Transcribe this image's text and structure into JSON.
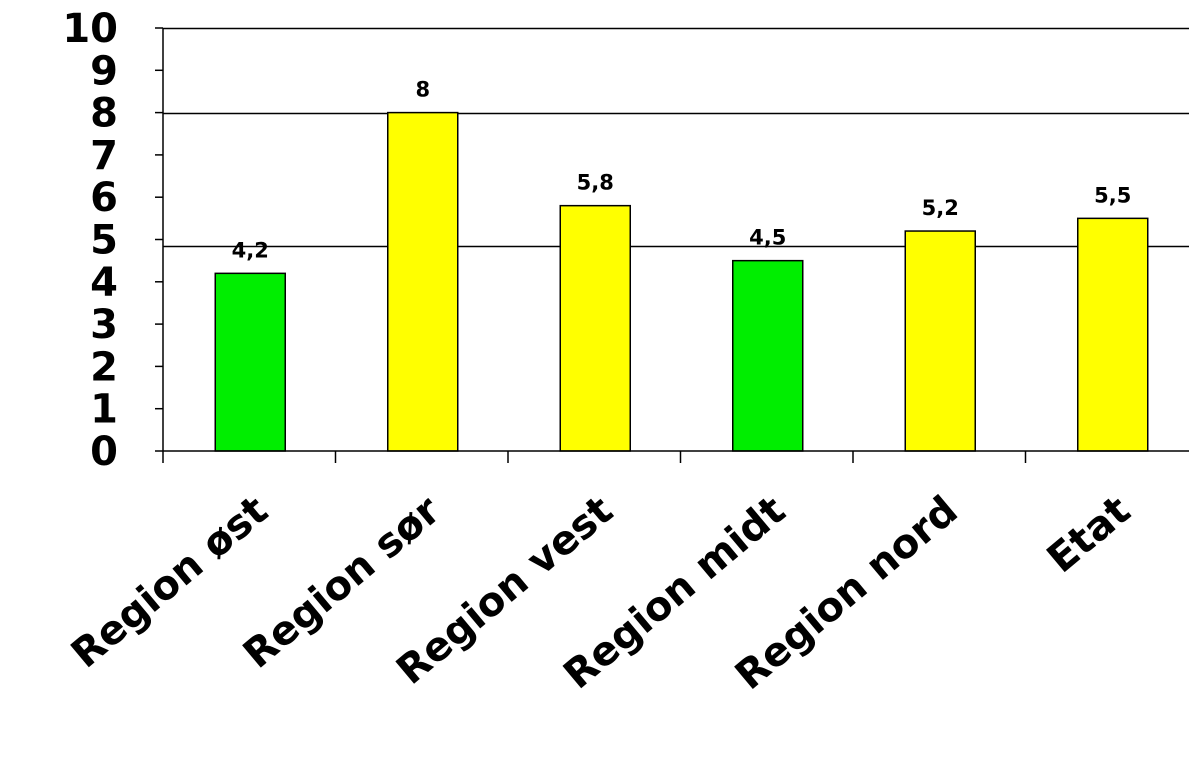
{
  "chart_data": {
    "type": "bar",
    "title": "",
    "xlabel": "",
    "ylabel": "",
    "categories": [
      "Region øst",
      "Region sør",
      "Region vest",
      "Region midt",
      "Region nord",
      "Etat"
    ],
    "values": [
      4.2,
      8,
      5.8,
      4.5,
      5.2,
      5.5
    ],
    "data_labels": [
      "4,2",
      "8",
      "5,8",
      "4,5",
      "5,2",
      "5,5"
    ],
    "bar_colors": [
      "#00ee00",
      "#ffff00",
      "#ffff00",
      "#00ee00",
      "#ffff00",
      "#ffff00"
    ],
    "ylim": [
      0,
      10
    ],
    "yticks": [
      0,
      1,
      2,
      3,
      4,
      5,
      6,
      7,
      8,
      9,
      10
    ],
    "ytick_labels": [
      "0",
      "1",
      "2",
      "3",
      "4",
      "5",
      "6",
      "7",
      "8",
      "9",
      "10"
    ],
    "reference_lines": [
      8,
      4.85
    ],
    "grid": false,
    "legend": "none"
  }
}
